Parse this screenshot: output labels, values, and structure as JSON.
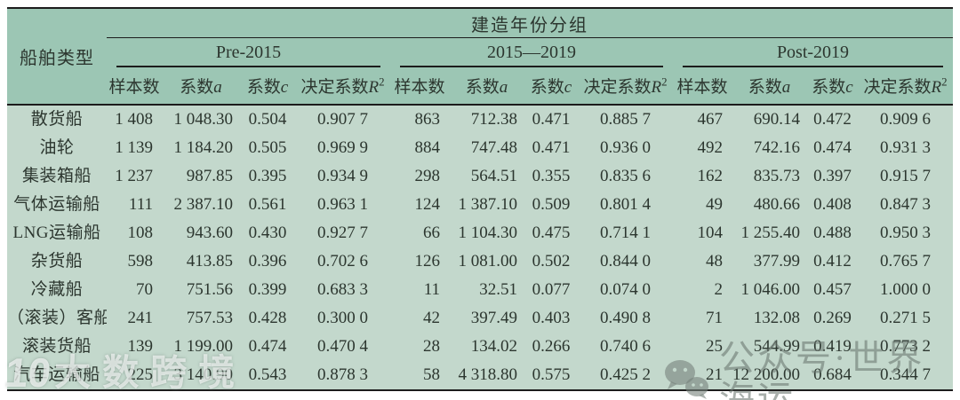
{
  "table": {
    "corner_header": "船舶类型",
    "top_header": "建造年份分组",
    "groups": [
      {
        "label": "Pre-2015"
      },
      {
        "label": "2015—2019"
      },
      {
        "label": "Post-2019"
      }
    ],
    "sub_headers": {
      "sample": "样本数",
      "coef": "系数",
      "var_a": "a",
      "var_c": "c",
      "r2": "决定系数",
      "var_r": "R",
      "r2_sup": "2"
    },
    "rows": [
      {
        "type": "散货船",
        "cells": [
          "1 408",
          "1 048.30",
          "0.504",
          "0.907 7",
          "863",
          "712.38",
          "0.471",
          "0.885 7",
          "467",
          "690.14",
          "0.472",
          "0.909 6"
        ]
      },
      {
        "type": "油轮",
        "cells": [
          "1 139",
          "1 184.20",
          "0.505",
          "0.969 9",
          "884",
          "747.48",
          "0.471",
          "0.936 0",
          "492",
          "742.16",
          "0.474",
          "0.931 3"
        ]
      },
      {
        "type": "集装箱船",
        "cells": [
          "1 237",
          "987.85",
          "0.395",
          "0.934 9",
          "298",
          "564.51",
          "0.355",
          "0.835 6",
          "162",
          "835.73",
          "0.397",
          "0.915 7"
        ]
      },
      {
        "type": "气体运输船",
        "cells": [
          "111",
          "2 387.10",
          "0.561",
          "0.963 1",
          "124",
          "1 387.10",
          "0.509",
          "0.801 4",
          "49",
          "480.66",
          "0.408",
          "0.847 3"
        ]
      },
      {
        "type": "LNG运输船",
        "cells": [
          "108",
          "943.60",
          "0.430",
          "0.927 7",
          "66",
          "1 104.30",
          "0.475",
          "0.714 1",
          "104",
          "1 255.40",
          "0.488",
          "0.950 3"
        ]
      },
      {
        "type": "杂货船",
        "cells": [
          "598",
          "413.85",
          "0.396",
          "0.702 6",
          "126",
          "1 081.00",
          "0.502",
          "0.844 0",
          "48",
          "377.99",
          "0.412",
          "0.765 7"
        ]
      },
      {
        "type": "冷藏船",
        "cells": [
          "70",
          "751.56",
          "0.399",
          "0.683 3",
          "11",
          "32.51",
          "0.077",
          "0.074 0",
          "2",
          "1 046.00",
          "0.457",
          "1.000 0"
        ]
      },
      {
        "type": "（滚装）客船",
        "cells": [
          "241",
          "757.53",
          "0.428",
          "0.300 0",
          "42",
          "397.49",
          "0.403",
          "0.490 8",
          "71",
          "132.08",
          "0.269",
          "0.271 5"
        ]
      },
      {
        "type": "滚装货船",
        "cells": [
          "139",
          "1 199.00",
          "0.474",
          "0.470 4",
          "28",
          "134.02",
          "0.266",
          "0.740 6",
          "25",
          "544.99",
          "0.419",
          "0.773 2"
        ]
      },
      {
        "type": "汽车运输船",
        "cells": [
          "225",
          "3 140.90",
          "0.543",
          "0.878 3",
          "58",
          "4 318.80",
          "0.575",
          "0.425 2",
          "21",
          "12 200.00",
          "0.684",
          "0.344 7"
        ]
      }
    ]
  },
  "watermarks": {
    "left_logo": "10",
    "left_text": "大数跨境",
    "right_text": "公众号·世界海运"
  },
  "colors": {
    "header_bg": "#9cc6b4",
    "body_bg": "#c3d8cc",
    "rule": "#1c1c1c",
    "text": "#2c362f"
  }
}
